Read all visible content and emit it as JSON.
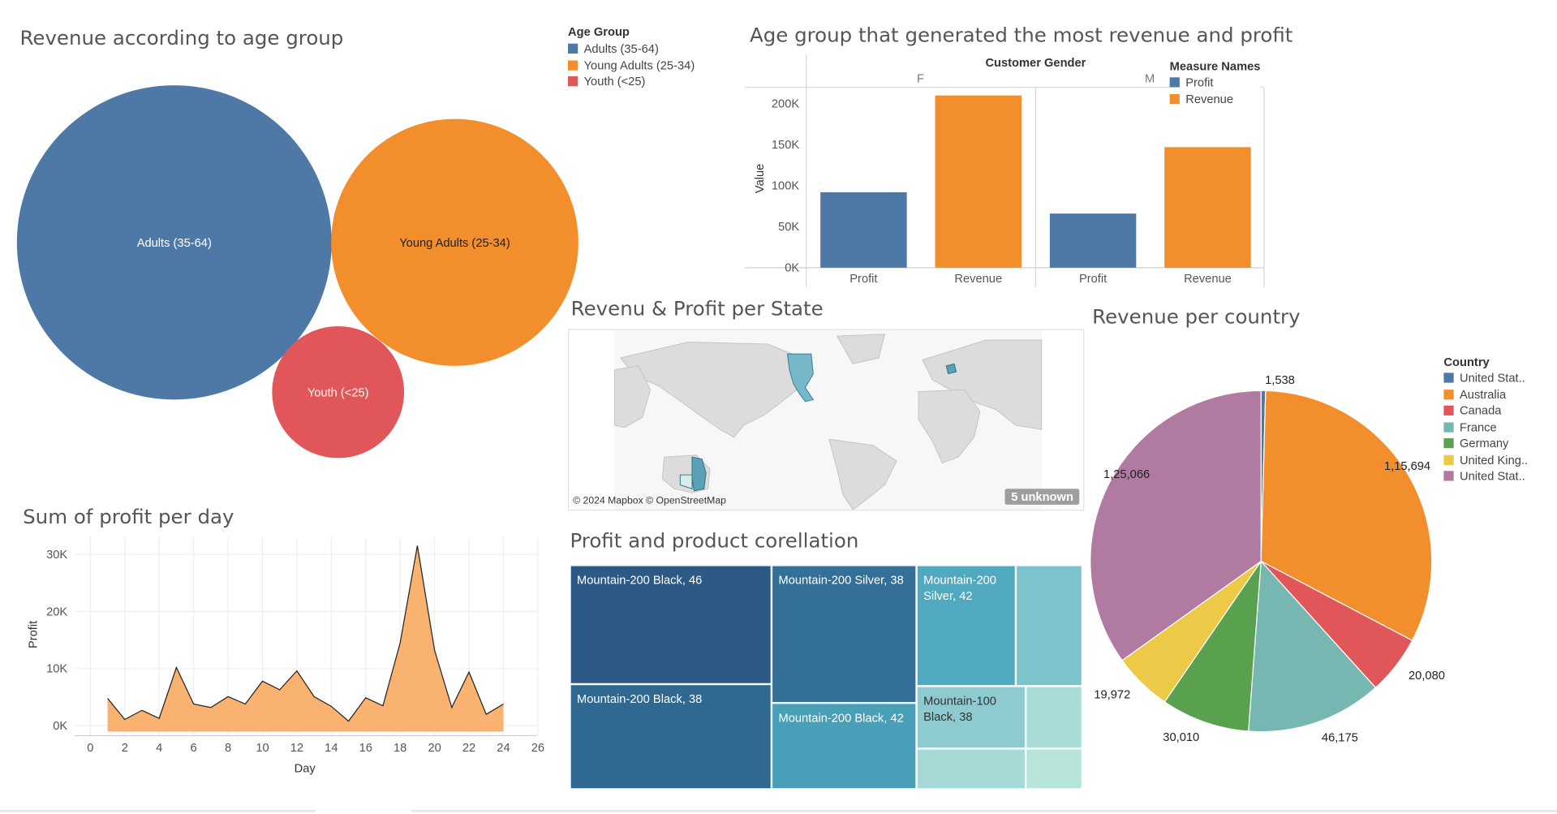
{
  "colors": {
    "blue": "#4e79a7",
    "orange": "#f28e2b",
    "red": "#e15759",
    "teal": "#76b7b2",
    "green": "#59a14f",
    "yellow": "#edc948",
    "purple": "#b07aa1",
    "area": "#f9b270"
  },
  "bubbles": {
    "title": "Revenue according to age group",
    "legend_title": "Age Group",
    "items": [
      {
        "label": "Adults (35-64)",
        "color": "#4e79a7"
      },
      {
        "label": "Young Adults (25-34)",
        "color": "#f28e2b"
      },
      {
        "label": "Youth (<25)",
        "color": "#e15759"
      }
    ]
  },
  "bars": {
    "title": "Age group that generated the most revenue and profit",
    "column_header": "Customer Gender",
    "panels": [
      "F",
      "M"
    ],
    "y_axis_title": "Value",
    "legend_title": "Measure Names",
    "legend": [
      {
        "label": "Profit",
        "color": "#4e79a7"
      },
      {
        "label": "Revenue",
        "color": "#f28e2b"
      }
    ]
  },
  "map": {
    "title": "Revenu & Profit per State",
    "credit": "© 2024 Mapbox © OpenStreetMap",
    "unknown": "5 unknown"
  },
  "pie": {
    "title": "Revenue per country",
    "legend_title": "Country",
    "legend": [
      {
        "label": "United Stat..",
        "color": "#4e79a7"
      },
      {
        "label": "Australia",
        "color": "#f28e2b"
      },
      {
        "label": "Canada",
        "color": "#e15759"
      },
      {
        "label": "France",
        "color": "#76b7b2"
      },
      {
        "label": "Germany",
        "color": "#59a14f"
      },
      {
        "label": "United King..",
        "color": "#edc948"
      },
      {
        "label": "United Stat..",
        "color": "#b07aa1"
      }
    ]
  },
  "area": {
    "title": "Sum of profit per day",
    "xlabel": "Day",
    "ylabel": "Profit"
  },
  "treemap": {
    "title": "Profit and product corellation",
    "cells": [
      {
        "label": "Mountain-200 Black, 46"
      },
      {
        "label": "Mountain-200 Black, 38"
      },
      {
        "label": "Mountain-200 Silver, 38"
      },
      {
        "label": "Mountain-200 Black, 42"
      },
      {
        "label": "Mountain-200 Silver, 42"
      },
      {
        "label": "Mountain-100 Black, 38"
      }
    ]
  },
  "chart_data": [
    {
      "type": "bubble",
      "title": "Revenue according to age group",
      "legend_title": "Age Group",
      "categories": [
        "Adults (35-64)",
        "Young Adults (25-34)",
        "Youth (<25)"
      ],
      "values": [
        100,
        62,
        17.5
      ]
    },
    {
      "type": "bar",
      "title": "Age group that generated the most revenue and profit",
      "ylabel": "Value",
      "column_header": "Customer Gender",
      "ylim": [
        0,
        220000
      ],
      "yticks": [
        0,
        50000,
        100000,
        150000,
        200000
      ],
      "ytick_labels": [
        "0K",
        "50K",
        "100K",
        "150K",
        "200K"
      ],
      "panels": [
        {
          "name": "F",
          "categories": [
            "Profit",
            "Revenue"
          ],
          "values": [
            92000,
            210000
          ]
        },
        {
          "name": "M",
          "categories": [
            "Profit",
            "Revenue"
          ],
          "values": [
            66000,
            147000
          ]
        }
      ]
    },
    {
      "type": "pie",
      "title": "Revenue per country",
      "categories": [
        "United Stat..",
        "Australia",
        "Canada",
        "France",
        "Germany",
        "United King..",
        "United Stat.."
      ],
      "values": [
        1538,
        115694,
        20080,
        46175,
        30010,
        19972,
        125066
      ],
      "labels": [
        "1,538",
        "1,15,694",
        "20,080",
        "46,175",
        "30,010",
        "19,972",
        "1,25,066"
      ]
    },
    {
      "type": "area",
      "title": "Sum of profit per day",
      "xlabel": "Day",
      "ylabel": "Profit",
      "xlim": [
        -1,
        26
      ],
      "ylim": [
        -1000,
        33000
      ],
      "xticks": [
        0,
        2,
        4,
        6,
        8,
        10,
        12,
        14,
        16,
        18,
        20,
        22,
        24,
        26
      ],
      "yticks": [
        0,
        10000,
        20000,
        30000
      ],
      "ytick_labels": [
        "0K",
        "10K",
        "20K",
        "30K"
      ],
      "x": [
        1,
        2,
        3,
        4,
        5,
        6,
        7,
        8,
        9,
        10,
        11,
        12,
        13,
        14,
        15,
        16,
        17,
        18,
        19,
        20,
        21,
        22,
        23,
        24
      ],
      "y": [
        4800,
        1100,
        2700,
        1300,
        10200,
        3800,
        3200,
        5100,
        3800,
        7800,
        6300,
        9600,
        5100,
        3400,
        800,
        4900,
        3500,
        14500,
        31500,
        13200,
        3200,
        9400,
        2000,
        3800
      ]
    },
    {
      "type": "treemap",
      "title": "Profit and product corellation",
      "labels": [
        "Mountain-200 Black, 46",
        "Mountain-200 Black, 38",
        "Mountain-200 Silver, 38",
        "Mountain-200 Black, 42",
        "Mountain-200 Silver, 42",
        "Mountain-100 Black, 38"
      ]
    }
  ]
}
